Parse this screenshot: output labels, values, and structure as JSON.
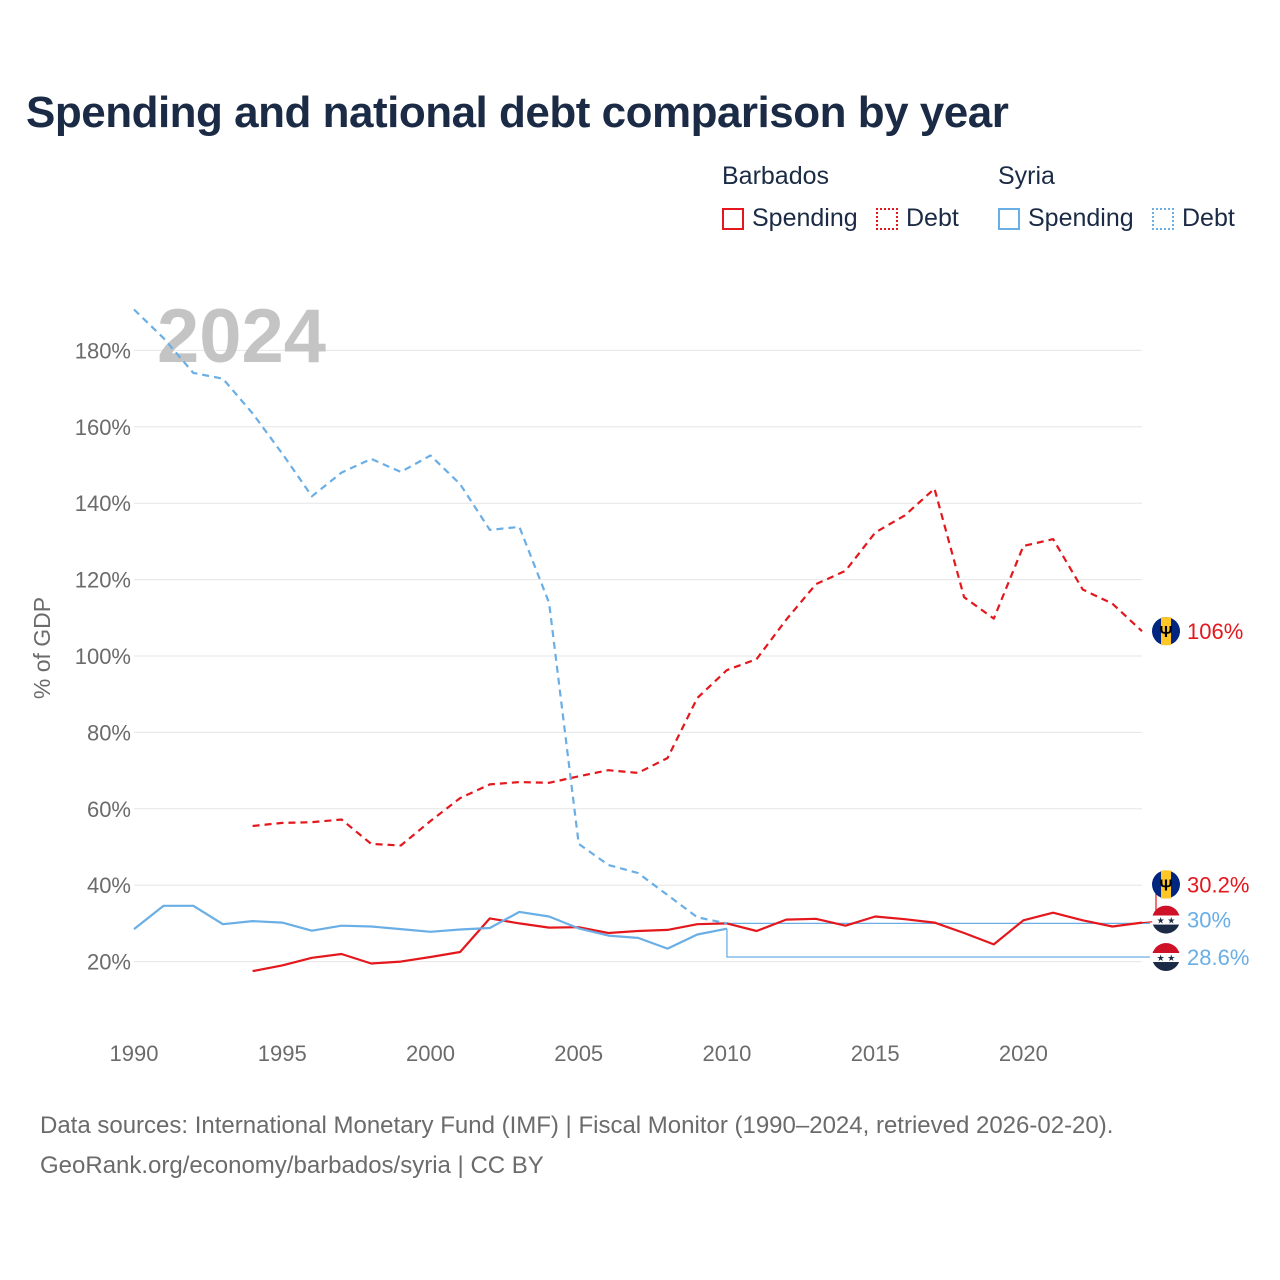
{
  "title": "Spending and national debt comparison by year",
  "legend": {
    "groups": [
      {
        "name": "Barbados",
        "color": "#e3171c",
        "items": [
          "Spending",
          "Debt"
        ]
      },
      {
        "name": "Syria",
        "color": "#6aaee6",
        "items": [
          "Spending",
          "Debt"
        ]
      }
    ]
  },
  "year_watermark": "2024",
  "footer": {
    "line1": "Data sources: International Monetary Fund (IMF) | Fiscal Monitor (1990–2024, retrieved 2026-02-20).",
    "line2": "GeoRank.org/economy/barbados/syria | CC BY"
  },
  "chart_data": {
    "type": "line",
    "ylabel": "% of GDP",
    "xlabel": "",
    "xlim": [
      1990,
      2024
    ],
    "ylim": [
      0,
      200
    ],
    "x_ticks": [
      1990,
      1995,
      2000,
      2005,
      2010,
      2015,
      2020
    ],
    "y_ticks": [
      20,
      40,
      60,
      80,
      100,
      120,
      140,
      160,
      180
    ],
    "y_tick_labels": [
      "20%",
      "40%",
      "60%",
      "80%",
      "100%",
      "120%",
      "140%",
      "160%",
      "180%"
    ],
    "series": [
      {
        "name": "Barbados Spending",
        "country": "Barbados",
        "measure": "Spending",
        "color": "#e3171c",
        "dash": "solid",
        "points": [
          [
            1994,
            17.5
          ],
          [
            1995,
            19
          ],
          [
            1996,
            21
          ],
          [
            1997,
            22
          ],
          [
            1998,
            19.5
          ],
          [
            1999,
            20
          ],
          [
            2000,
            21.2
          ],
          [
            2001,
            22.5
          ],
          [
            2002,
            31.3
          ],
          [
            2003,
            30
          ],
          [
            2004,
            28.9
          ],
          [
            2005,
            29
          ],
          [
            2006,
            27.5
          ],
          [
            2007,
            28
          ],
          [
            2008,
            28.3
          ],
          [
            2009,
            29.8
          ],
          [
            2010,
            30
          ],
          [
            2011,
            28
          ],
          [
            2012,
            31
          ],
          [
            2013,
            31.2
          ],
          [
            2014,
            29.4
          ],
          [
            2015,
            31.8
          ],
          [
            2016,
            31.1
          ],
          [
            2017,
            30.2
          ],
          [
            2018,
            27.5
          ],
          [
            2019,
            24.5
          ],
          [
            2020,
            30.8
          ],
          [
            2021,
            32.8
          ],
          [
            2022,
            30.8
          ],
          [
            2023,
            29.2
          ],
          [
            2024,
            30.2
          ]
        ]
      },
      {
        "name": "Barbados Debt",
        "country": "Barbados",
        "measure": "Debt",
        "color": "#e3171c",
        "dash": "dashed",
        "points": [
          [
            1994,
            55.5
          ],
          [
            1995,
            56.3
          ],
          [
            1996,
            56.5
          ],
          [
            1997,
            57.2
          ],
          [
            1998,
            50.8
          ],
          [
            1999,
            50.4
          ],
          [
            2000,
            56.8
          ],
          [
            2001,
            62.8
          ],
          [
            2002,
            66.4
          ],
          [
            2003,
            67
          ],
          [
            2004,
            66.8
          ],
          [
            2005,
            68.5
          ],
          [
            2006,
            70.1
          ],
          [
            2007,
            69.4
          ],
          [
            2008,
            73.3
          ],
          [
            2009,
            89
          ],
          [
            2010,
            96.3
          ],
          [
            2011,
            99.2
          ],
          [
            2012,
            109.5
          ],
          [
            2013,
            118.8
          ],
          [
            2014,
            122.3
          ],
          [
            2015,
            132.3
          ],
          [
            2016,
            136.8
          ],
          [
            2017,
            143.8
          ],
          [
            2018,
            115.4
          ],
          [
            2019,
            109.8
          ],
          [
            2020,
            128.8
          ],
          [
            2021,
            130.6
          ],
          [
            2022,
            117.4
          ],
          [
            2023,
            113.7
          ],
          [
            2024,
            106.5
          ]
        ]
      },
      {
        "name": "Syria Spending",
        "country": "Syria",
        "measure": "Spending",
        "color": "#6aaee6",
        "dash": "solid",
        "points": [
          [
            1990,
            28.5
          ],
          [
            1991,
            34.6
          ],
          [
            1992,
            34.6
          ],
          [
            1993,
            29.8
          ],
          [
            1994,
            30.6
          ],
          [
            1995,
            30.2
          ],
          [
            1996,
            28.1
          ],
          [
            1997,
            29.4
          ],
          [
            1998,
            29.2
          ],
          [
            1999,
            28.5
          ],
          [
            2000,
            27.8
          ],
          [
            2001,
            28.4
          ],
          [
            2002,
            28.8
          ],
          [
            2003,
            33
          ],
          [
            2004,
            31.8
          ],
          [
            2005,
            28.7
          ],
          [
            2006,
            26.8
          ],
          [
            2007,
            26.2
          ],
          [
            2008,
            23.4
          ],
          [
            2009,
            27.1
          ],
          [
            2010,
            28.6
          ]
        ]
      },
      {
        "name": "Syria Debt",
        "country": "Syria",
        "measure": "Debt",
        "color": "#6aaee6",
        "dash": "dashed",
        "points": [
          [
            1990,
            190.7
          ],
          [
            1991,
            183.2
          ],
          [
            1992,
            174.1
          ],
          [
            1993,
            172.6
          ],
          [
            1994,
            163.5
          ],
          [
            1995,
            153
          ],
          [
            1996,
            141.8
          ],
          [
            1997,
            148
          ],
          [
            1998,
            151.6
          ],
          [
            1999,
            148.2
          ],
          [
            2000,
            152.5
          ],
          [
            2001,
            145
          ],
          [
            2002,
            133
          ],
          [
            2003,
            133.8
          ],
          [
            2004,
            113.9
          ],
          [
            2005,
            50.8
          ],
          [
            2006,
            45.3
          ],
          [
            2007,
            43.2
          ],
          [
            2008,
            37.4
          ],
          [
            2009,
            31.6
          ],
          [
            2010,
            30
          ]
        ]
      }
    ],
    "end_labels": [
      {
        "text": "106%",
        "country": "Barbados",
        "value": 106.5,
        "color": "#e3171c"
      },
      {
        "text": "30.2%",
        "country": "Barbados",
        "value": 30.2,
        "color": "#e3171c"
      },
      {
        "text": "30%",
        "country": "Syria",
        "value": 30,
        "color": "#6aaee6"
      },
      {
        "text": "28.6%",
        "country": "Syria",
        "value": 28.6,
        "color": "#6aaee6"
      }
    ]
  }
}
